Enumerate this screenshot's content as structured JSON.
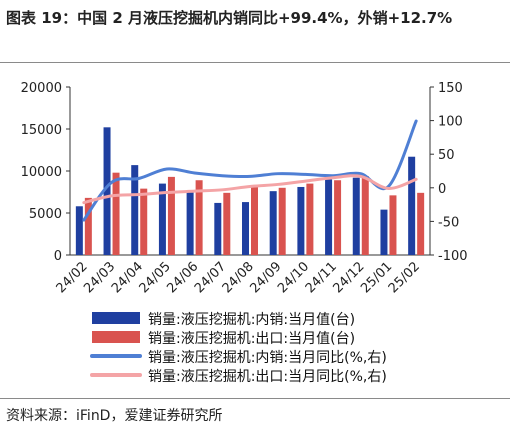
{
  "title": "图表 19：中国 2 月液压挖掘机内销同比+99.4%，外销+12.7%",
  "source": "资料来源：iFinD，爱建证券研究所",
  "chart_data": {
    "type": "bar",
    "categories": [
      "24/02",
      "24/03",
      "24/04",
      "24/05",
      "24/06",
      "24/07",
      "24/08",
      "24/09",
      "24/10",
      "24/11",
      "24/12",
      "25/01",
      "25/02"
    ],
    "left_axis": {
      "min": 0,
      "max": 20000,
      "ticks": [
        "0",
        "5000",
        "10000",
        "15000",
        "20000"
      ]
    },
    "right_axis": {
      "min": -100,
      "max": 150,
      "ticks": [
        "-100",
        "-50",
        "0",
        "50",
        "100",
        "150"
      ]
    },
    "series": [
      {
        "name": "销量:液压挖掘机:内销:当月值(台)",
        "axis": "left",
        "kind": "bar",
        "color": "#1f3fa0",
        "values": [
          5800,
          15200,
          10700,
          8500,
          7600,
          6200,
          6300,
          7600,
          8100,
          9000,
          9200,
          5400,
          11700
        ]
      },
      {
        "name": "销量:液压挖掘机:出口:当月值(台)",
        "axis": "left",
        "kind": "bar",
        "color": "#d9534f",
        "values": [
          6800,
          9800,
          7900,
          9300,
          8900,
          7400,
          8100,
          8000,
          8500,
          8900,
          9400,
          7100,
          7400
        ]
      },
      {
        "name": "销量:液压挖掘机:内销:当月同比(%,右)",
        "axis": "right",
        "kind": "line",
        "color": "#4f7fd4",
        "values": [
          -48,
          8,
          14,
          28,
          22,
          18,
          17,
          21,
          20,
          18,
          21,
          2,
          99.4
        ]
      },
      {
        "name": "销量:液压挖掘机:出口:当月同比(%,右)",
        "axis": "right",
        "kind": "line",
        "color": "#f4a4a6",
        "values": [
          -22,
          -12,
          -10,
          -7,
          -5,
          -3,
          2,
          5,
          10,
          15,
          17,
          -1,
          12.7
        ]
      }
    ]
  }
}
